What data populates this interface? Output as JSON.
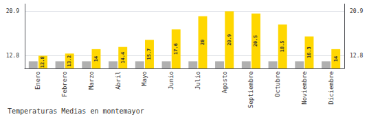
{
  "chart_data": {
    "type": "bar",
    "title": "Temperaturas Medias en montemayor",
    "categories": [
      "Enero",
      "Febrero",
      "Marzo",
      "Abril",
      "Mayo",
      "Junio",
      "Julio",
      "Agosto",
      "Septiembre",
      "Octubre",
      "Noviembre",
      "Diciembre"
    ],
    "series": [
      {
        "color": "#B0B0B0",
        "values": [
          11.8,
          11.8,
          11.8,
          11.8,
          11.8,
          11.8,
          11.8,
          11.8,
          11.8,
          11.8,
          11.8,
          11.8
        ]
      },
      {
        "color": "#FFD700",
        "values": [
          12.8,
          13.2,
          14.0,
          14.4,
          15.7,
          17.6,
          20.0,
          20.9,
          20.5,
          18.5,
          16.3,
          14.0
        ],
        "data_labels": true
      }
    ],
    "ylim": [
      10.5,
      22.2
    ],
    "yticks": [
      12.8,
      20.9
    ],
    "y2lim": [
      10.5,
      22.2
    ],
    "y2ticks": [
      12.8,
      20.9
    ],
    "grid": true
  }
}
